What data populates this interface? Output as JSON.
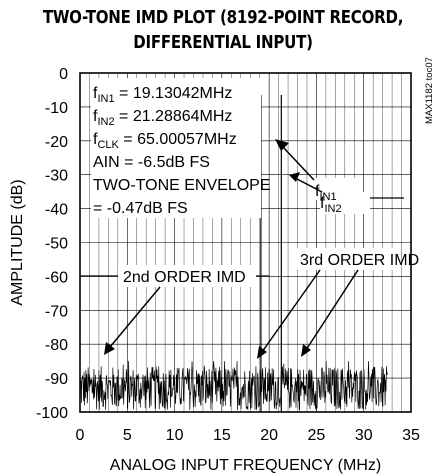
{
  "chart_data": {
    "type": "line",
    "title_line1": "TWO-TONE IMD PLOT (8192-POINT RECORD,",
    "title_line2": "DIFFERENTIAL INPUT)",
    "xlabel": "ANALOG INPUT FREQUENCY (MHz)",
    "ylabel": "AMPLITUDE (dB)",
    "xlim": [
      0,
      35
    ],
    "ylim": [
      -100,
      0
    ],
    "x_ticks": [
      "0",
      "5",
      "10",
      "15",
      "20",
      "25",
      "30",
      "35"
    ],
    "y_ticks": [
      "0",
      "-10",
      "-20",
      "-30",
      "-40",
      "-50",
      "-60",
      "-70",
      "-80",
      "-90",
      "-100"
    ],
    "grid": true,
    "noise_floor": {
      "x_start": 0,
      "x_end": 32.5,
      "level_db": -93,
      "peak_range_db": [
        -85,
        -100
      ]
    },
    "tones": [
      {
        "x": 19.13042,
        "y": -6.5
      },
      {
        "x": 21.28864,
        "y": -6.5
      }
    ],
    "info": {
      "fin1_sym": "f",
      "fin1_sub": "IN1",
      "fin1_val": " = 19.13042MHz",
      "fin2_sym": "f",
      "fin2_sub": "IN2",
      "fin2_val": " = 21.28864MHz",
      "fclk_sym": "f",
      "fclk_sub": "CLK",
      "fclk_val": " = 65.00057MHz",
      "ain": "AIN = -6.5dB FS",
      "envelope1": "TWO-TONE ENVELOPE",
      "envelope2": "= -0.47dB FS"
    },
    "annotations": {
      "fin1_sym": "f",
      "fin1_sub": "IN1",
      "fin2_sym": "f",
      "fin2_sub": "IN2",
      "second_order": "2nd ORDER IMD",
      "third_order": "3rd ORDER IMD"
    },
    "part_number": "MAX1182 toc07"
  }
}
